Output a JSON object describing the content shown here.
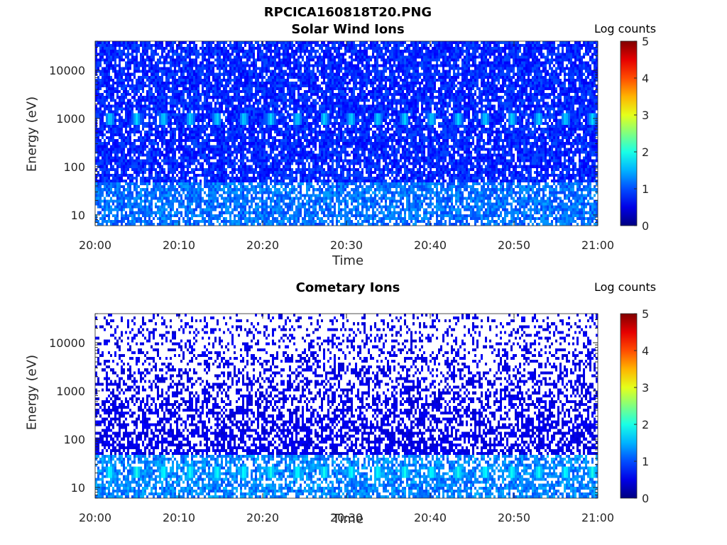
{
  "figure_title": "RPCICA160818T20.PNG",
  "chart_data": [
    {
      "type": "heatmap",
      "title": "Solar Wind Ions",
      "xlabel": "Time",
      "ylabel": "Energy (eV)",
      "x_ticks": [
        "20:00",
        "20:10",
        "20:20",
        "20:30",
        "20:40",
        "20:50",
        "21:00"
      ],
      "x_range": [
        "20:00",
        "21:00"
      ],
      "y_ticks": [
        10,
        100,
        1000,
        10000
      ],
      "y_scale": "log",
      "y_range": [
        6,
        40000
      ],
      "colorbar_label": "Log counts",
      "colorbar_ticks": [
        0,
        1,
        2,
        3,
        4,
        5
      ],
      "colorbar_range": [
        0,
        5
      ],
      "colormap": "jet",
      "features": {
        "background_level": 0.8,
        "low_energy_band": {
          "energy_range": [
            6,
            45
          ],
          "level": 1.2
        },
        "periodic_peak": {
          "energy": 1000,
          "level": 1.7,
          "period_minutes": 3.2
        }
      }
    },
    {
      "type": "heatmap",
      "title": "Cometary Ions",
      "xlabel": "Time",
      "ylabel": "Energy (eV)",
      "x_ticks": [
        "20:00",
        "20:10",
        "20:20",
        "20:30",
        "20:40",
        "20:50",
        "21:00"
      ],
      "x_range": [
        "20:00",
        "21:00"
      ],
      "y_ticks": [
        10,
        100,
        1000,
        10000
      ],
      "y_scale": "log",
      "y_range": [
        6,
        40000
      ],
      "colorbar_label": "Log counts",
      "colorbar_ticks": [
        0,
        1,
        2,
        3,
        4,
        5
      ],
      "colorbar_range": [
        0,
        5
      ],
      "colormap": "jet",
      "features": {
        "background_level": 0.5,
        "low_energy_band": {
          "energy_range": [
            6,
            45
          ],
          "level": 1.3
        },
        "periodic_peak": {
          "energy": 20,
          "level": 2.0,
          "period_minutes": 3.2
        }
      }
    }
  ]
}
